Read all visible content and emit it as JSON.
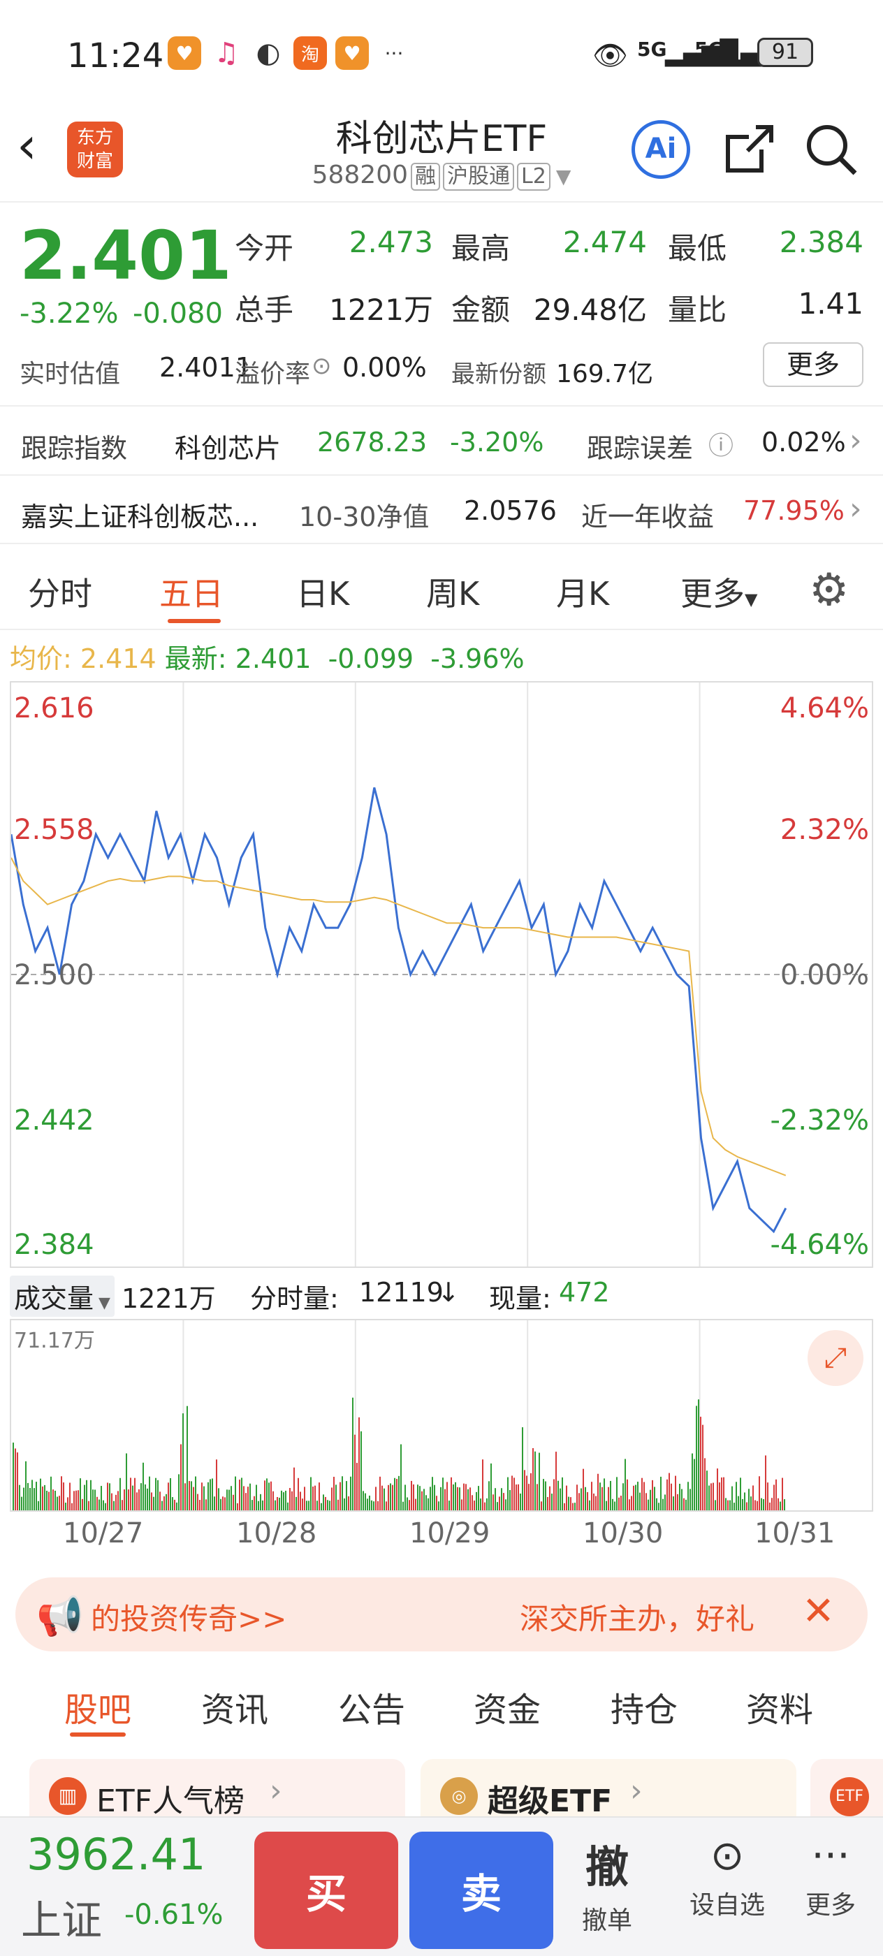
{
  "status_bar": {
    "time": "11:24",
    "battery": "91",
    "signal1": "5G",
    "signal2": "5G"
  },
  "header": {
    "title": "科创芯片ETF",
    "code": "588200",
    "tags": [
      "融",
      "沪股通",
      "L2"
    ],
    "logo_text": [
      "东方",
      "财富"
    ]
  },
  "quote": {
    "price": "2.401",
    "change_pct": "-3.22%",
    "change": "-0.080",
    "open_label": "今开",
    "open": "2.473",
    "high_label": "最高",
    "high": "2.474",
    "low_label": "最低",
    "low": "2.384",
    "vol_label": "总手",
    "vol": "1221万",
    "amount_label": "金额",
    "amount": "29.48亿",
    "ratio_label": "量比",
    "ratio": "1.41",
    "iopv_label": "实时估值",
    "iopv": "2.4011",
    "premium_label": "溢价率",
    "premium": "0.00%",
    "shares_label": "最新份额",
    "shares": "169.7亿",
    "more_label": "更多"
  },
  "tracking": {
    "index_label": "跟踪指数",
    "index_name": "科创芯片",
    "index_value": "2678.23",
    "index_pct": "-3.20%",
    "error_label": "跟踪误差",
    "error_value": "0.02%",
    "fund_name": "嘉实上证科创板芯...",
    "nav_label": "10-30净值",
    "nav_value": "2.0576",
    "yield_label": "近一年收益",
    "yield_value": "77.95%"
  },
  "chart_tabs": [
    "分时",
    "五日",
    "日K",
    "周K",
    "月K",
    "更多"
  ],
  "active_tab": "五日",
  "avg_line": {
    "avg_label": "均价:",
    "avg": "2.414",
    "latest_label": "最新:",
    "latest": "2.401",
    "chg": "-0.099",
    "pct": "-3.96%"
  },
  "chart_data": {
    "type": "line",
    "y_left_ticks": [
      "2.616",
      "2.558",
      "2.500",
      "2.442",
      "2.384"
    ],
    "y_right_ticks": [
      "4.64%",
      "2.32%",
      "0.00%",
      "-2.32%",
      "-4.64%"
    ],
    "x_labels": [
      "10/27",
      "10/28",
      "10/29",
      "10/30",
      "10/31"
    ],
    "ylim": [
      2.384,
      2.616
    ],
    "prev_close": 2.5,
    "series": [
      {
        "values": [
          2.56,
          2.53,
          2.51,
          2.52,
          2.5,
          2.53,
          2.54,
          2.56,
          2.55,
          2.56,
          2.55,
          2.54,
          2.57,
          2.55,
          2.56,
          2.54,
          2.56,
          2.55,
          2.53,
          2.55,
          2.56,
          2.52,
          2.5,
          2.52,
          2.51,
          2.53,
          2.52,
          2.52,
          2.53,
          2.55,
          2.58,
          2.56,
          2.52,
          2.5,
          2.51,
          2.5,
          2.51,
          2.52,
          2.53,
          2.51,
          2.52,
          2.53,
          2.54,
          2.52,
          2.53,
          2.5,
          2.51,
          2.53,
          2.52,
          2.54,
          2.53,
          2.52,
          2.51,
          2.52,
          2.51,
          2.5,
          2.495,
          2.43,
          2.4,
          2.41,
          2.42,
          2.4,
          2.395,
          2.39,
          2.4
        ]
      },
      {
        "values": [
          2.55,
          2.54,
          2.535,
          2.53,
          2.532,
          2.534,
          2.536,
          2.538,
          2.54,
          2.541,
          2.54,
          2.54,
          2.541,
          2.542,
          2.542,
          2.541,
          2.54,
          2.54,
          2.538,
          2.537,
          2.536,
          2.535,
          2.534,
          2.533,
          2.532,
          2.532,
          2.531,
          2.531,
          2.531,
          2.532,
          2.533,
          2.532,
          2.53,
          2.528,
          2.526,
          2.524,
          2.522,
          2.522,
          2.521,
          2.52,
          2.52,
          2.52,
          2.52,
          2.519,
          2.518,
          2.517,
          2.516,
          2.516,
          2.516,
          2.516,
          2.516,
          2.515,
          2.514,
          2.513,
          2.512,
          2.511,
          2.51,
          2.45,
          2.43,
          2.425,
          2.422,
          2.42,
          2.418,
          2.416,
          2.414
        ]
      }
    ]
  },
  "volume": {
    "label": "成交量",
    "total": "1221万",
    "tick_label": "分时量:",
    "tick_value": "12119",
    "now_label": "现量:",
    "now_value": "472",
    "max": "71.17万"
  },
  "banner": {
    "left_text": "的投资传奇>>",
    "right_text": "深交所主办，好礼"
  },
  "sub_tabs": [
    "股吧",
    "资讯",
    "公告",
    "资金",
    "持仓",
    "资料"
  ],
  "active_sub_tab": "股吧",
  "promo": {
    "left": "ETF人气榜",
    "right": "超级ETF",
    "badge": "ETF"
  },
  "bottom": {
    "index_value": "3962.41",
    "index_name": "上证",
    "index_pct": "-0.61%",
    "buy": "买",
    "sell": "卖",
    "cancel_glyph": "撤",
    "cancel": "撤单",
    "watch": "设自选",
    "more": "更多"
  },
  "colors": {
    "up": "#d63a3a",
    "down": "#2e9c35",
    "price_line": "#3a6fd1",
    "avg_line": "#e8b64a",
    "accent": "#e8562a"
  }
}
